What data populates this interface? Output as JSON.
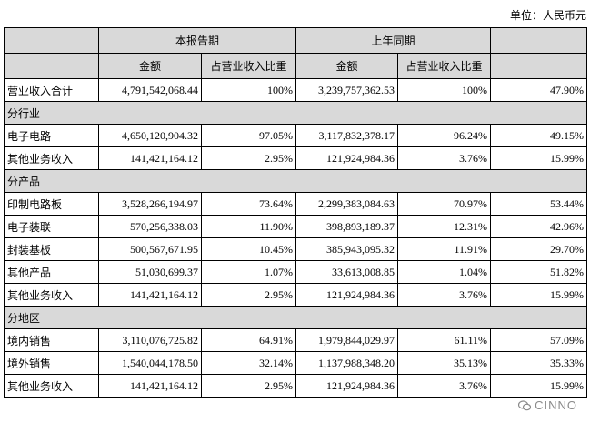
{
  "unit_label": "单位：人民币元",
  "header": {
    "group_current": "本报告期",
    "group_prior": "上年同期",
    "col_amount": "金额",
    "col_ratio": "占营业收入比重"
  },
  "rows": [
    {
      "type": "data",
      "label": "营业收入合计",
      "cur_amount": "4,791,542,068.44",
      "cur_ratio": "100%",
      "prior_amount": "3,239,757,362.53",
      "prior_ratio": "100%",
      "change": "47.90%"
    },
    {
      "type": "section",
      "label": "分行业"
    },
    {
      "type": "data",
      "label": "电子电路",
      "cur_amount": "4,650,120,904.32",
      "cur_ratio": "97.05%",
      "prior_amount": "3,117,832,378.17",
      "prior_ratio": "96.24%",
      "change": "49.15%"
    },
    {
      "type": "data",
      "label": "其他业务收入",
      "cur_amount": "141,421,164.12",
      "cur_ratio": "2.95%",
      "prior_amount": "121,924,984.36",
      "prior_ratio": "3.76%",
      "change": "15.99%"
    },
    {
      "type": "section",
      "label": "分产品"
    },
    {
      "type": "data",
      "label": "印制电路板",
      "cur_amount": "3,528,266,194.97",
      "cur_ratio": "73.64%",
      "prior_amount": "2,299,383,084.63",
      "prior_ratio": "70.97%",
      "change": "53.44%"
    },
    {
      "type": "data",
      "label": "电子装联",
      "cur_amount": "570,256,338.03",
      "cur_ratio": "11.90%",
      "prior_amount": "398,893,189.37",
      "prior_ratio": "12.31%",
      "change": "42.96%"
    },
    {
      "type": "data",
      "label": "封装基板",
      "cur_amount": "500,567,671.95",
      "cur_ratio": "10.45%",
      "prior_amount": "385,943,095.32",
      "prior_ratio": "11.91%",
      "change": "29.70%"
    },
    {
      "type": "data",
      "label": "其他产品",
      "cur_amount": "51,030,699.37",
      "cur_ratio": "1.07%",
      "prior_amount": "33,613,008.85",
      "prior_ratio": "1.04%",
      "change": "51.82%"
    },
    {
      "type": "data",
      "label": "其他业务收入",
      "cur_amount": "141,421,164.12",
      "cur_ratio": "2.95%",
      "prior_amount": "121,924,984.36",
      "prior_ratio": "3.76%",
      "change": "15.99%"
    },
    {
      "type": "section",
      "label": "分地区"
    },
    {
      "type": "data",
      "label": "境内销售",
      "cur_amount": "3,110,076,725.82",
      "cur_ratio": "64.91%",
      "prior_amount": "1,979,844,029.97",
      "prior_ratio": "61.11%",
      "change": "57.09%"
    },
    {
      "type": "data",
      "label": "境外销售",
      "cur_amount": "1,540,044,178.50",
      "cur_ratio": "32.14%",
      "prior_amount": "1,137,988,348.20",
      "prior_ratio": "35.13%",
      "change": "35.33%"
    },
    {
      "type": "data",
      "label": "其他业务收入",
      "cur_amount": "141,421,164.12",
      "cur_ratio": "2.95%",
      "prior_amount": "121,924,984.36",
      "prior_ratio": "3.76%",
      "change": "15.99%"
    }
  ],
  "watermark": {
    "text": "CINNO",
    "icon": "wechat-icon"
  }
}
